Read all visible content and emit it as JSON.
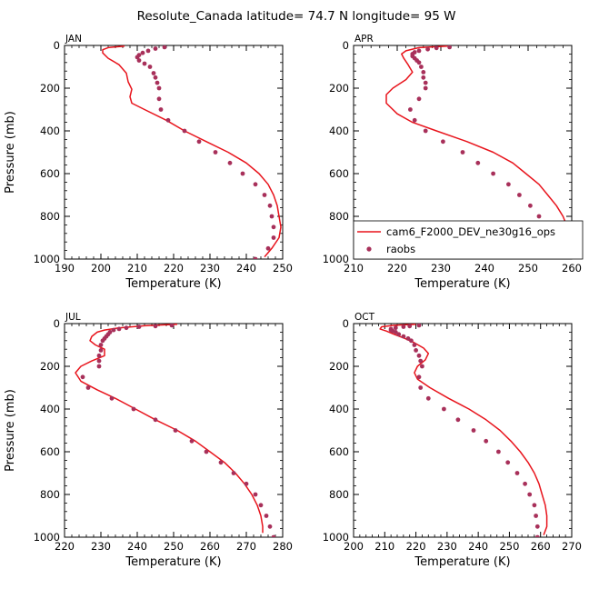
{
  "title": "Resolute_Canada  latitude= 74.7 N longitude= 95 W",
  "legend": {
    "model_label": "cam6_F2000_DEV_ne30g16_ops",
    "obs_label": "raobs",
    "placement": "inside APR panel, lower right"
  },
  "colors": {
    "model_line": "#e8141c",
    "obs_marker": "#a8305a"
  },
  "chart_data": [
    {
      "type": "line",
      "panel": "JAN",
      "xlabel": "Temperature (K)",
      "ylabel": "Pressure (mb)",
      "xlim": [
        190,
        250
      ],
      "ylim": [
        1000,
        0
      ],
      "y_inverted": true,
      "xticks": [
        "190",
        "200",
        "210",
        "220",
        "230",
        "240",
        "250"
      ],
      "yticks": [
        "0",
        "200",
        "400",
        "600",
        "800",
        "1000"
      ],
      "series": [
        {
          "name": "cam6_F2000_DEV_ne30g16_ops",
          "kind": "line",
          "points": [
            [
              206.5,
              3
            ],
            [
              202,
              10
            ],
            [
              200.5,
              20
            ],
            [
              200.5,
              35
            ],
            [
              202,
              60
            ],
            [
              205,
              90
            ],
            [
              207,
              130
            ],
            [
              207.5,
              170
            ],
            [
              208.5,
              205
            ],
            [
              208,
              240
            ],
            [
              208.5,
              270
            ],
            [
              212,
              300
            ],
            [
              218,
              350
            ],
            [
              223,
              400
            ],
            [
              229,
              450
            ],
            [
              235,
              500
            ],
            [
              240,
              550
            ],
            [
              243.5,
              600
            ],
            [
              246,
              650
            ],
            [
              247.5,
              700
            ],
            [
              248.5,
              750
            ],
            [
              249,
              800
            ],
            [
              249.5,
              850
            ],
            [
              249,
              900
            ],
            [
              247,
              950
            ],
            [
              245,
              990
            ]
          ]
        },
        {
          "name": "raobs",
          "kind": "points",
          "points": [
            [
              217.5,
              8
            ],
            [
              215,
              15
            ],
            [
              213,
              25
            ],
            [
              211.5,
              35
            ],
            [
              210.5,
              45
            ],
            [
              210,
              55
            ],
            [
              210.5,
              70
            ],
            [
              212,
              85
            ],
            [
              213.5,
              100
            ],
            [
              214.5,
              130
            ],
            [
              215,
              150
            ],
            [
              215.5,
              175
            ],
            [
              216,
              200
            ],
            [
              216,
              250
            ],
            [
              216.5,
              300
            ],
            [
              218.5,
              350
            ],
            [
              223,
              400
            ],
            [
              227,
              450
            ],
            [
              231.5,
              500
            ],
            [
              235.5,
              550
            ],
            [
              239,
              600
            ],
            [
              242.5,
              650
            ],
            [
              245,
              700
            ],
            [
              246.5,
              750
            ],
            [
              247,
              800
            ],
            [
              247.5,
              850
            ],
            [
              247.5,
              900
            ],
            [
              246,
              950
            ],
            [
              242.5,
              1000
            ]
          ]
        }
      ]
    },
    {
      "type": "line",
      "panel": "APR",
      "xlabel": "Temperature (K)",
      "ylabel": "",
      "xlim": [
        210,
        260
      ],
      "ylim": [
        1000,
        0
      ],
      "y_inverted": true,
      "xticks": [
        "210",
        "220",
        "230",
        "240",
        "250",
        "260"
      ],
      "yticks": [
        "0",
        "200",
        "400",
        "600",
        "800",
        "1000"
      ],
      "series": [
        {
          "name": "cam6_F2000_DEV_ne30g16_ops",
          "kind": "line",
          "points": [
            [
              231.5,
              3
            ],
            [
              225,
              10
            ],
            [
              222,
              25
            ],
            [
              221,
              40
            ],
            [
              221.5,
              60
            ],
            [
              222.5,
              90
            ],
            [
              223.5,
              125
            ],
            [
              222,
              160
            ],
            [
              219,
              200
            ],
            [
              217.5,
              230
            ],
            [
              217.5,
              270
            ],
            [
              220,
              320
            ],
            [
              223.5,
              360
            ],
            [
              229,
              400
            ],
            [
              236,
              450
            ],
            [
              242,
              500
            ],
            [
              246.5,
              550
            ],
            [
              249.5,
              600
            ],
            [
              252.5,
              650
            ],
            [
              254.5,
              700
            ],
            [
              256.5,
              750
            ],
            [
              258,
              800
            ],
            [
              259,
              850
            ],
            [
              259,
              900
            ],
            [
              257.5,
              950
            ],
            [
              255,
              980
            ]
          ]
        },
        {
          "name": "raobs",
          "kind": "points",
          "points": [
            [
              232,
              8
            ],
            [
              229,
              12
            ],
            [
              227,
              18
            ],
            [
              225,
              25
            ],
            [
              224,
              32
            ],
            [
              223.5,
              40
            ],
            [
              223.5,
              50
            ],
            [
              224,
              60
            ],
            [
              224.5,
              70
            ],
            [
              225,
              80
            ],
            [
              225.5,
              100
            ],
            [
              226,
              125
            ],
            [
              226,
              150
            ],
            [
              226.5,
              175
            ],
            [
              226.5,
              200
            ],
            [
              225,
              250
            ],
            [
              223,
              300
            ],
            [
              224,
              350
            ],
            [
              226.5,
              400
            ],
            [
              230.5,
              450
            ],
            [
              235,
              500
            ],
            [
              238.5,
              550
            ],
            [
              242,
              600
            ],
            [
              245.5,
              650
            ],
            [
              248,
              700
            ],
            [
              250.5,
              750
            ],
            [
              252.5,
              800
            ],
            [
              253.5,
              850
            ],
            [
              254,
              900
            ],
            [
              253,
              950
            ],
            [
              251,
              1000
            ]
          ]
        }
      ]
    },
    {
      "type": "line",
      "panel": "JUL",
      "xlabel": "Temperature (K)",
      "ylabel": "Pressure (mb)",
      "xlim": [
        220,
        280
      ],
      "ylim": [
        1000,
        0
      ],
      "y_inverted": true,
      "xticks": [
        "220",
        "230",
        "240",
        "250",
        "260",
        "270",
        "280"
      ],
      "yticks": [
        "0",
        "200",
        "400",
        "600",
        "800",
        "1000"
      ],
      "series": [
        {
          "name": "cam6_F2000_DEV_ne30g16_ops",
          "kind": "line",
          "points": [
            [
              251,
              3
            ],
            [
              242,
              10
            ],
            [
              235,
              20
            ],
            [
              231,
              30
            ],
            [
              229,
              40
            ],
            [
              227.5,
              60
            ],
            [
              227,
              80
            ],
            [
              228.5,
              100
            ],
            [
              231,
              120
            ],
            [
              231,
              150
            ],
            [
              227.5,
              175
            ],
            [
              224.5,
              200
            ],
            [
              223,
              230
            ],
            [
              224.5,
              270
            ],
            [
              229,
              310
            ],
            [
              234,
              350
            ],
            [
              239.5,
              400
            ],
            [
              245,
              450
            ],
            [
              251,
              500
            ],
            [
              256,
              550
            ],
            [
              260,
              600
            ],
            [
              264,
              650
            ],
            [
              267,
              700
            ],
            [
              269.5,
              750
            ],
            [
              271.5,
              800
            ],
            [
              273,
              850
            ],
            [
              274,
              900
            ],
            [
              274.5,
              950
            ],
            [
              274.5,
              980
            ]
          ]
        },
        {
          "name": "raobs",
          "kind": "points",
          "points": [
            [
              249.5,
              8
            ],
            [
              245,
              12
            ],
            [
              240.5,
              15
            ],
            [
              237,
              20
            ],
            [
              235,
              25
            ],
            [
              233.5,
              30
            ],
            [
              232.5,
              40
            ],
            [
              232,
              50
            ],
            [
              231.5,
              60
            ],
            [
              231,
              70
            ],
            [
              230.5,
              80
            ],
            [
              230,
              100
            ],
            [
              230,
              125
            ],
            [
              229.5,
              150
            ],
            [
              229.5,
              175
            ],
            [
              229.5,
              200
            ],
            [
              225,
              250
            ],
            [
              226.5,
              300
            ],
            [
              233,
              350
            ],
            [
              239,
              400
            ],
            [
              245,
              450
            ],
            [
              250.5,
              500
            ],
            [
              255,
              550
            ],
            [
              259,
              600
            ],
            [
              263,
              650
            ],
            [
              266.5,
              700
            ],
            [
              270,
              750
            ],
            [
              272.5,
              800
            ],
            [
              274,
              850
            ],
            [
              275.5,
              900
            ],
            [
              276.5,
              950
            ],
            [
              277.5,
              1000
            ]
          ]
        }
      ]
    },
    {
      "type": "line",
      "panel": "OCT",
      "xlabel": "Temperature (K)",
      "ylabel": "",
      "xlim": [
        200,
        270
      ],
      "ylim": [
        1000,
        0
      ],
      "y_inverted": true,
      "xticks": [
        "200",
        "210",
        "220",
        "230",
        "240",
        "250",
        "260",
        "270"
      ],
      "yticks": [
        "0",
        "200",
        "400",
        "600",
        "800",
        "1000"
      ],
      "series": [
        {
          "name": "cam6_F2000_DEV_ne30g16_ops",
          "kind": "line",
          "points": [
            [
              220,
              3
            ],
            [
              213,
              8
            ],
            [
              209,
              15
            ],
            [
              208.5,
              25
            ],
            [
              210.5,
              35
            ],
            [
              213,
              50
            ],
            [
              216.5,
              70
            ],
            [
              219.5,
              90
            ],
            [
              222.5,
              115
            ],
            [
              224,
              140
            ],
            [
              223,
              170
            ],
            [
              220.5,
              200
            ],
            [
              219.5,
              230
            ],
            [
              220.5,
              260
            ],
            [
              224.5,
              300
            ],
            [
              230.5,
              350
            ],
            [
              237,
              400
            ],
            [
              242.5,
              450
            ],
            [
              247,
              500
            ],
            [
              250.5,
              550
            ],
            [
              253.5,
              600
            ],
            [
              256,
              650
            ],
            [
              258,
              700
            ],
            [
              259.5,
              750
            ],
            [
              260.5,
              800
            ],
            [
              261.5,
              850
            ],
            [
              262,
              900
            ],
            [
              262,
              950
            ],
            [
              261,
              990
            ]
          ]
        },
        {
          "name": "raobs",
          "kind": "points",
          "points": [
            [
              221,
              8
            ],
            [
              218,
              12
            ],
            [
              216,
              15
            ],
            [
              213.5,
              20
            ],
            [
              212,
              25
            ],
            [
              212,
              30
            ],
            [
              212.5,
              35
            ],
            [
              213.5,
              40
            ],
            [
              214.5,
              50
            ],
            [
              216,
              60
            ],
            [
              217.5,
              70
            ],
            [
              218.5,
              80
            ],
            [
              219.5,
              100
            ],
            [
              220,
              125
            ],
            [
              221,
              150
            ],
            [
              221.5,
              175
            ],
            [
              222,
              200
            ],
            [
              221,
              250
            ],
            [
              221.5,
              300
            ],
            [
              224,
              350
            ],
            [
              229,
              400
            ],
            [
              233.5,
              450
            ],
            [
              238.5,
              500
            ],
            [
              242.5,
              550
            ],
            [
              246.5,
              600
            ],
            [
              249.5,
              650
            ],
            [
              252.5,
              700
            ],
            [
              255,
              750
            ],
            [
              256.5,
              800
            ],
            [
              258,
              850
            ],
            [
              258.5,
              900
            ],
            [
              259,
              950
            ],
            [
              259,
              1000
            ]
          ]
        }
      ]
    }
  ]
}
